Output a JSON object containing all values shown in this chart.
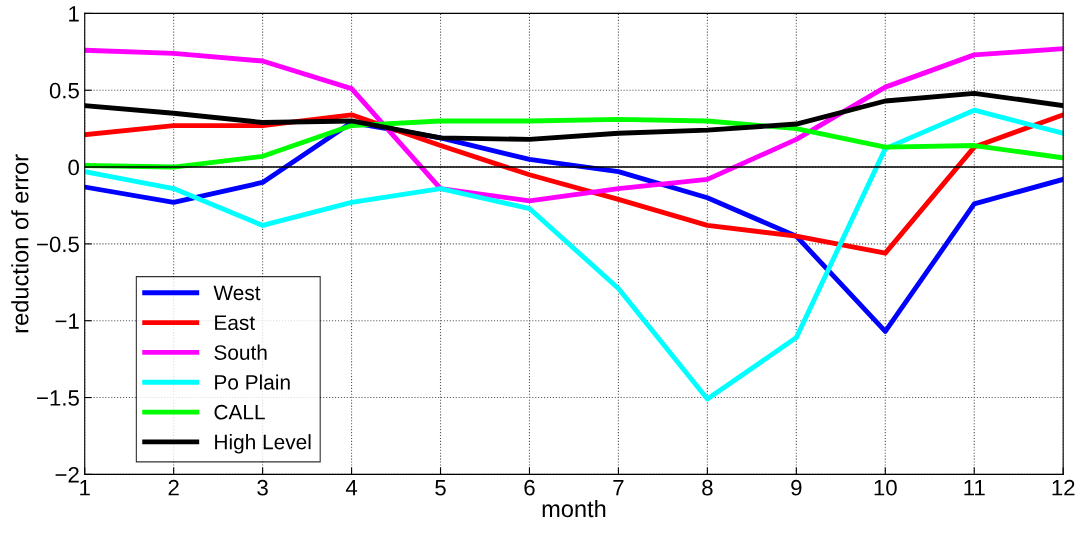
{
  "chart_data": {
    "type": "line",
    "xlabel": "month",
    "ylabel": "reduction of error",
    "x": [
      1,
      2,
      3,
      4,
      5,
      6,
      7,
      8,
      9,
      10,
      11,
      12
    ],
    "series": [
      {
        "name": "West",
        "color": "#0000ff",
        "values": [
          -0.13,
          -0.23,
          -0.1,
          0.29,
          0.19,
          0.05,
          -0.03,
          -0.2,
          -0.45,
          -1.07,
          -0.24,
          -0.08
        ]
      },
      {
        "name": "East",
        "color": "#ff0000",
        "values": [
          0.21,
          0.27,
          0.27,
          0.34,
          0.14,
          -0.05,
          -0.21,
          -0.38,
          -0.45,
          -0.56,
          0.13,
          0.34
        ]
      },
      {
        "name": "South",
        "color": "#ff00ff",
        "values": [
          0.76,
          0.74,
          0.69,
          0.51,
          -0.14,
          -0.22,
          -0.14,
          -0.08,
          0.18,
          0.52,
          0.73,
          0.77
        ]
      },
      {
        "name": "Po Plain",
        "color": "#00ffff",
        "values": [
          -0.03,
          -0.14,
          -0.38,
          -0.23,
          -0.14,
          -0.27,
          -0.79,
          -1.51,
          -1.11,
          0.12,
          0.37,
          0.22
        ]
      },
      {
        "name": "CALL",
        "color": "#00ff00",
        "values": [
          0.01,
          0.0,
          0.07,
          0.27,
          0.3,
          0.3,
          0.31,
          0.3,
          0.25,
          0.13,
          0.14,
          0.06
        ]
      },
      {
        "name": "High Level",
        "color": "#000000",
        "values": [
          0.4,
          0.35,
          0.29,
          0.3,
          0.19,
          0.18,
          0.22,
          0.24,
          0.28,
          0.43,
          0.48,
          0.4
        ]
      }
    ],
    "xlim": [
      1,
      12
    ],
    "xticks": [
      1,
      2,
      3,
      4,
      5,
      6,
      7,
      8,
      9,
      10,
      11,
      12
    ],
    "ylim": [
      -2,
      1
    ],
    "yticks": [
      -2,
      -1.5,
      -1,
      -0.5,
      0,
      0.5,
      1
    ],
    "ref_lines": [
      {
        "axis": "y",
        "value": 0,
        "color": "#000000"
      }
    ],
    "grid": true,
    "legend": "bottom left",
    "line_style": "solid"
  }
}
